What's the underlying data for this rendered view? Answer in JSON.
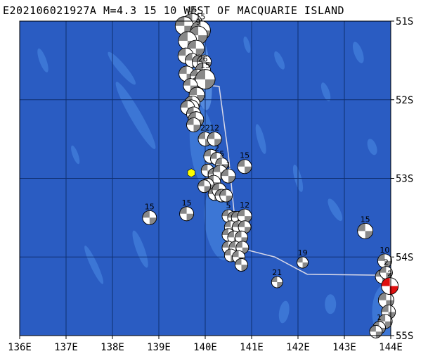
{
  "title": "E202106021927A M=4.3 15 10 WEST OF MACQUARIE ISLAND",
  "colors": {
    "ocean": "#2a5cc2",
    "shallow": "#3f7ad8",
    "ridge": "#5a92e4",
    "grid": "#0f2f70",
    "plate_boundary": "#d8d8e8",
    "event_fill": "#ffffff",
    "event_compression": "#888888",
    "target_compression": "#e01010",
    "epicenter_marker": "#ffff00"
  },
  "map": {
    "lon_range": [
      136,
      144
    ],
    "lat_range": [
      -55,
      -51
    ],
    "lon_labels": [
      "136E",
      "137E",
      "138E",
      "139E",
      "140E",
      "141E",
      "142E",
      "143E",
      "144E"
    ],
    "lat_labels": [
      "51S",
      "52S",
      "53S",
      "54S",
      "55S"
    ]
  },
  "plate_boundary": [
    [
      140.1,
      -51.82
    ],
    [
      140.3,
      -51.83
    ],
    [
      140.5,
      -52.7
    ],
    [
      140.6,
      -53.3
    ],
    [
      140.7,
      -53.88
    ],
    [
      141.5,
      -54.0
    ],
    [
      142.2,
      -54.22
    ],
    [
      143.6,
      -54.23
    ],
    [
      144,
      -54.23
    ]
  ],
  "epicenter": {
    "lon": 139.7,
    "lat": -52.93
  },
  "mechanisms": [
    {
      "lon": 139.72,
      "lat": -51.03,
      "label": "15",
      "size": 14
    },
    {
      "lon": 139.55,
      "lat": -51.06,
      "label": "",
      "size": 13
    },
    {
      "lon": 139.9,
      "lat": -51.12,
      "label": "15",
      "size": 14
    },
    {
      "lon": 139.85,
      "lat": -51.18,
      "label": "9",
      "size": 13
    },
    {
      "lon": 139.62,
      "lat": -51.25,
      "label": "",
      "size": 13
    },
    {
      "lon": 139.8,
      "lat": -51.35,
      "label": "",
      "size": 12
    },
    {
      "lon": 139.58,
      "lat": -51.44,
      "label": "",
      "size": 11
    },
    {
      "lon": 139.72,
      "lat": -51.5,
      "label": "",
      "size": 10
    },
    {
      "lon": 139.87,
      "lat": -51.52,
      "label": "",
      "size": 10
    },
    {
      "lon": 139.98,
      "lat": -51.52,
      "label": "",
      "size": 10
    },
    {
      "lon": 139.95,
      "lat": -51.63,
      "label": "26",
      "size": 11
    },
    {
      "lon": 139.6,
      "lat": -51.67,
      "label": "",
      "size": 11
    },
    {
      "lon": 139.83,
      "lat": -51.7,
      "label": "",
      "size": 10
    },
    {
      "lon": 139.85,
      "lat": -51.8,
      "label": "",
      "size": 10
    },
    {
      "lon": 140.0,
      "lat": -51.74,
      "label": "15",
      "size": 14
    },
    {
      "lon": 139.68,
      "lat": -51.82,
      "label": "",
      "size": 10
    },
    {
      "lon": 139.82,
      "lat": -51.94,
      "label": "",
      "size": 11
    },
    {
      "lon": 139.72,
      "lat": -52.05,
      "label": "",
      "size": 11
    },
    {
      "lon": 139.7,
      "lat": -52.1,
      "label": "",
      "size": 11
    },
    {
      "lon": 139.62,
      "lat": -52.1,
      "label": "",
      "size": 10
    },
    {
      "lon": 139.75,
      "lat": -52.18,
      "label": "",
      "size": 10
    },
    {
      "lon": 139.8,
      "lat": -52.25,
      "label": "",
      "size": 11
    },
    {
      "lon": 139.75,
      "lat": -52.32,
      "label": "",
      "size": 10
    },
    {
      "lon": 140.0,
      "lat": -52.5,
      "label": "22",
      "size": 10
    },
    {
      "lon": 140.2,
      "lat": -52.5,
      "label": "12",
      "size": 10
    },
    {
      "lon": 140.12,
      "lat": -52.72,
      "label": "",
      "size": 10
    },
    {
      "lon": 140.25,
      "lat": -52.75,
      "label": "2",
      "size": 9
    },
    {
      "lon": 140.36,
      "lat": -52.82,
      "label": "5",
      "size": 9
    },
    {
      "lon": 140.05,
      "lat": -52.9,
      "label": "",
      "size": 9
    },
    {
      "lon": 140.2,
      "lat": -52.95,
      "label": "",
      "size": 9
    },
    {
      "lon": 140.32,
      "lat": -52.92,
      "label": "",
      "size": 10
    },
    {
      "lon": 140.5,
      "lat": -52.97,
      "label": "1",
      "size": 10
    },
    {
      "lon": 140.18,
      "lat": -53.05,
      "label": "",
      "size": 10
    },
    {
      "lon": 140.05,
      "lat": -53.08,
      "label": "",
      "size": 9
    },
    {
      "lon": 139.98,
      "lat": -53.1,
      "label": "",
      "size": 9
    },
    {
      "lon": 140.2,
      "lat": -53.2,
      "label": "",
      "size": 9
    },
    {
      "lon": 140.3,
      "lat": -53.15,
      "label": "",
      "size": 10
    },
    {
      "lon": 140.35,
      "lat": -53.22,
      "label": "",
      "size": 9
    },
    {
      "lon": 140.45,
      "lat": -53.22,
      "label": "",
      "size": 9
    },
    {
      "lon": 140.85,
      "lat": -52.85,
      "label": "15",
      "size": 10
    },
    {
      "lon": 138.8,
      "lat": -53.5,
      "label": "15",
      "size": 10
    },
    {
      "lon": 139.6,
      "lat": -53.45,
      "label": "15",
      "size": 10
    },
    {
      "lon": 140.5,
      "lat": -53.48,
      "label": "5",
      "size": 9
    },
    {
      "lon": 140.62,
      "lat": -53.5,
      "label": "",
      "size": 9
    },
    {
      "lon": 140.7,
      "lat": -53.5,
      "label": "",
      "size": 9
    },
    {
      "lon": 140.85,
      "lat": -53.48,
      "label": "12",
      "size": 10
    },
    {
      "lon": 140.55,
      "lat": -53.62,
      "label": "",
      "size": 9
    },
    {
      "lon": 140.72,
      "lat": -53.62,
      "label": "",
      "size": 9
    },
    {
      "lon": 140.85,
      "lat": -53.62,
      "label": "",
      "size": 9
    },
    {
      "lon": 140.5,
      "lat": -53.72,
      "label": "",
      "size": 9
    },
    {
      "lon": 140.62,
      "lat": -53.75,
      "label": "",
      "size": 9
    },
    {
      "lon": 140.78,
      "lat": -53.75,
      "label": "",
      "size": 9
    },
    {
      "lon": 140.5,
      "lat": -53.88,
      "label": "",
      "size": 9
    },
    {
      "lon": 140.65,
      "lat": -53.88,
      "label": "",
      "size": 9
    },
    {
      "lon": 140.8,
      "lat": -53.88,
      "label": "",
      "size": 9
    },
    {
      "lon": 140.55,
      "lat": -53.98,
      "label": "",
      "size": 9
    },
    {
      "lon": 140.72,
      "lat": -54.0,
      "label": "",
      "size": 9
    },
    {
      "lon": 140.78,
      "lat": -54.1,
      "label": "",
      "size": 9
    },
    {
      "lon": 142.1,
      "lat": -54.07,
      "label": "19",
      "size": 8
    },
    {
      "lon": 141.55,
      "lat": -54.32,
      "label": "21",
      "size": 8
    },
    {
      "lon": 143.45,
      "lat": -53.67,
      "label": "15",
      "size": 11
    },
    {
      "lon": 143.87,
      "lat": -54.05,
      "label": "10",
      "size": 10
    },
    {
      "lon": 143.82,
      "lat": -54.25,
      "label": "",
      "size": 10
    },
    {
      "lon": 143.9,
      "lat": -54.2,
      "label": "2",
      "size": 9
    },
    {
      "lon": 143.9,
      "lat": -54.55,
      "label": "",
      "size": 11
    },
    {
      "lon": 143.95,
      "lat": -54.7,
      "label": "",
      "size": 10
    },
    {
      "lon": 143.88,
      "lat": -54.82,
      "label": "",
      "size": 10
    },
    {
      "lon": 143.75,
      "lat": -54.9,
      "label": "1",
      "size": 9
    },
    {
      "lon": 143.68,
      "lat": -54.95,
      "label": "",
      "size": 9
    }
  ],
  "target": {
    "lon": 143.98,
    "lat": -54.37,
    "label": "2",
    "size": 12
  }
}
